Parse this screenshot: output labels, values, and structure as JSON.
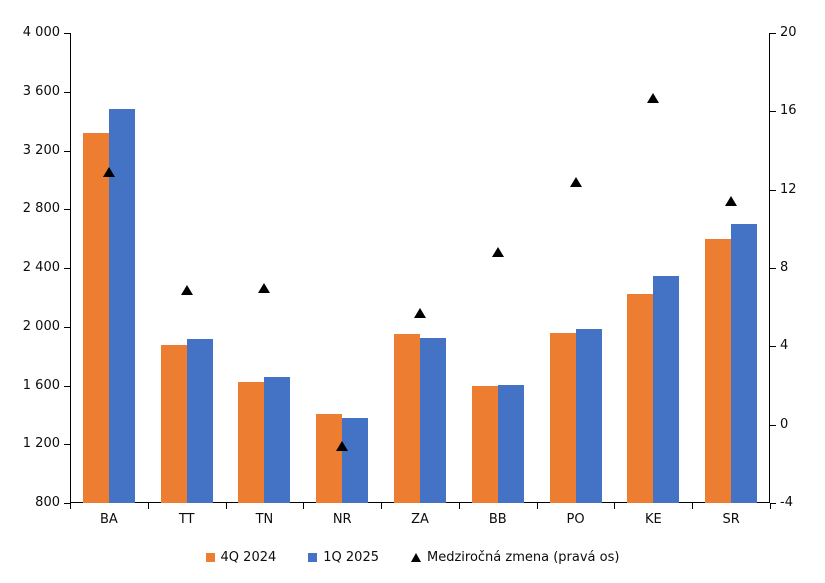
{
  "chart_data": {
    "type": "bar",
    "title": "",
    "categories": [
      "BA",
      "TT",
      "TN",
      "NR",
      "ZA",
      "BB",
      "PO",
      "KE",
      "SR"
    ],
    "series": [
      {
        "name": "4Q 2024",
        "type": "bar",
        "axis": "left",
        "color": "#ED7D31",
        "values": [
          3320,
          1875,
          1625,
          1405,
          1950,
          1600,
          1955,
          2225,
          2600
        ]
      },
      {
        "name": "1Q 2025",
        "type": "bar",
        "axis": "left",
        "color": "#4472C4",
        "values": [
          3485,
          1915,
          1655,
          1380,
          1925,
          1605,
          1985,
          2345,
          2700
        ]
      },
      {
        "name": "Medziročná zmena (pravá os)",
        "type": "scatter",
        "marker": "triangle",
        "axis": "right",
        "color": "#000000",
        "values": [
          12.9,
          6.9,
          7.0,
          -1.1,
          5.7,
          8.8,
          12.4,
          16.7,
          11.4
        ]
      }
    ],
    "left_axis": {
      "min": 800,
      "max": 4000,
      "step": 400,
      "tick_labels": [
        "800",
        "1 200",
        "1 600",
        "2 000",
        "2 400",
        "2 800",
        "3 200",
        "3 600",
        "4 000"
      ]
    },
    "right_axis": {
      "min": -4,
      "max": 20,
      "step": 4,
      "tick_labels": [
        "-4",
        "0",
        "4",
        "8",
        "12",
        "16",
        "20"
      ]
    },
    "legend_position": "bottom",
    "gridlines": false
  }
}
